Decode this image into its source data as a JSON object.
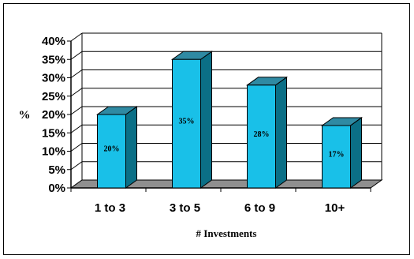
{
  "chart_data": {
    "type": "bar",
    "title": "",
    "xlabel": "# Investments",
    "ylabel": "%",
    "categories": [
      "1 to 3",
      "3 to 5",
      "6 to 9",
      "10+"
    ],
    "values": [
      20,
      35,
      28,
      17
    ],
    "data_labels": [
      "20%",
      "35%",
      "28%",
      "17%"
    ],
    "ylim": [
      0,
      40
    ],
    "yticks": [
      0,
      5,
      10,
      15,
      20,
      25,
      30,
      35,
      40
    ],
    "ytick_labels": [
      "0%",
      "5%",
      "10%",
      "15%",
      "20%",
      "25%",
      "30%",
      "35%",
      "40%"
    ],
    "grid": true,
    "style": "3d",
    "colors": {
      "bar_front": "#19c0e8",
      "bar_side": "#0b6f86",
      "bar_top": "#2f8aa3",
      "floor": "#8f8f8f"
    }
  }
}
